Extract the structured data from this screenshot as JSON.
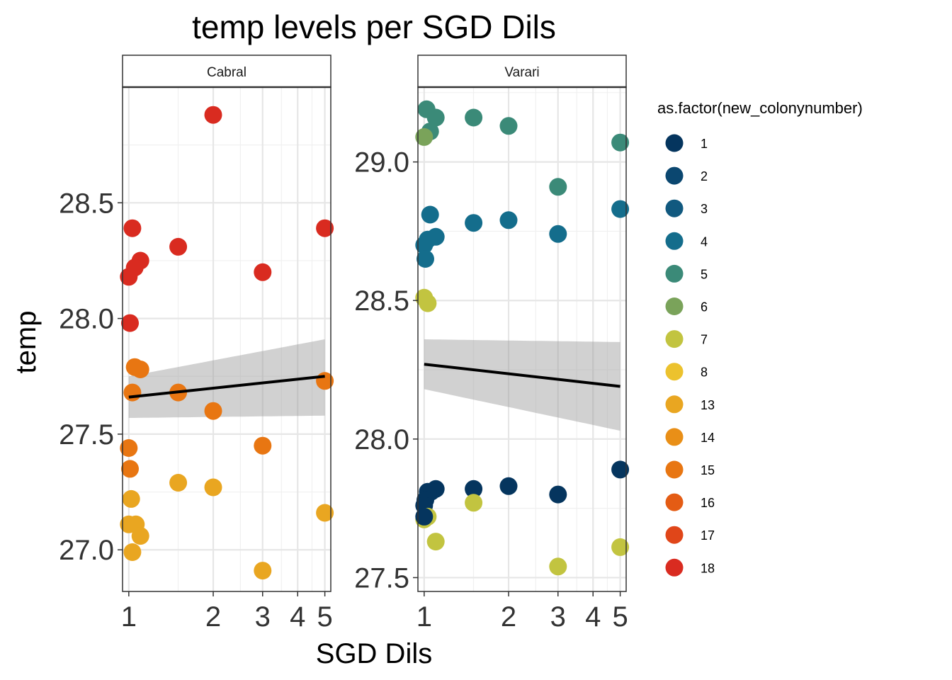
{
  "chart_data": {
    "type": "scatter",
    "title": "temp levels per SGD Dils",
    "xlabel": "SGD Dils",
    "ylabel": "temp",
    "x_scale": "log",
    "x_ticks": [
      1,
      2,
      3,
      4,
      5
    ],
    "legend": {
      "title": "as.factor(new_colonynumber)",
      "position": "right",
      "items": [
        {
          "label": "1",
          "color": "#05355e"
        },
        {
          "label": "2",
          "color": "#0b4770"
        },
        {
          "label": "3",
          "color": "#11597f"
        },
        {
          "label": "4",
          "color": "#146d8c"
        },
        {
          "label": "5",
          "color": "#3b8a78"
        },
        {
          "label": "6",
          "color": "#7aa35a"
        },
        {
          "label": "7",
          "color": "#c2c440"
        },
        {
          "label": "8",
          "color": "#ecc22e"
        },
        {
          "label": "13",
          "color": "#e9a621"
        },
        {
          "label": "14",
          "color": "#e98f17"
        },
        {
          "label": "15",
          "color": "#e87612"
        },
        {
          "label": "16",
          "color": "#e45c14"
        },
        {
          "label": "17",
          "color": "#e04619"
        },
        {
          "label": "18",
          "color": "#d92b20"
        }
      ]
    },
    "panels": [
      {
        "name": "Cabral",
        "ylim": [
          26.82,
          29.0
        ],
        "y_ticks": [
          27.0,
          27.5,
          28.0,
          28.5
        ],
        "y_tick_labels": [
          "27.0",
          "27.5",
          "28.0",
          "28.5"
        ],
        "trend": {
          "x": [
            1,
            5
          ],
          "y": [
            27.66,
            27.75
          ],
          "ci_low": [
            27.57,
            27.58
          ],
          "ci_high": [
            27.75,
            27.91
          ]
        },
        "points": [
          {
            "x": 2.0,
            "y": 28.88,
            "c": "18"
          },
          {
            "x": 1.03,
            "y": 28.39,
            "c": "18"
          },
          {
            "x": 5.0,
            "y": 28.39,
            "c": "18"
          },
          {
            "x": 1.5,
            "y": 28.31,
            "c": "18"
          },
          {
            "x": 1.1,
            "y": 28.25,
            "c": "18"
          },
          {
            "x": 1.05,
            "y": 28.22,
            "c": "18"
          },
          {
            "x": 3.0,
            "y": 28.2,
            "c": "18"
          },
          {
            "x": 1.0,
            "y": 28.18,
            "c": "18"
          },
          {
            "x": 1.01,
            "y": 27.98,
            "c": "18"
          },
          {
            "x": 1.05,
            "y": 27.79,
            "c": "15"
          },
          {
            "x": 1.1,
            "y": 27.78,
            "c": "15"
          },
          {
            "x": 1.03,
            "y": 27.68,
            "c": "15"
          },
          {
            "x": 1.5,
            "y": 27.68,
            "c": "15"
          },
          {
            "x": 5.0,
            "y": 27.73,
            "c": "15"
          },
          {
            "x": 2.0,
            "y": 27.6,
            "c": "15"
          },
          {
            "x": 1.0,
            "y": 27.44,
            "c": "15"
          },
          {
            "x": 3.0,
            "y": 27.45,
            "c": "15"
          },
          {
            "x": 1.01,
            "y": 27.35,
            "c": "15"
          },
          {
            "x": 1.5,
            "y": 27.29,
            "c": "13"
          },
          {
            "x": 2.0,
            "y": 27.27,
            "c": "13"
          },
          {
            "x": 1.02,
            "y": 27.22,
            "c": "13"
          },
          {
            "x": 5.0,
            "y": 27.16,
            "c": "13"
          },
          {
            "x": 1.0,
            "y": 27.11,
            "c": "13"
          },
          {
            "x": 1.06,
            "y": 27.11,
            "c": "13"
          },
          {
            "x": 1.1,
            "y": 27.06,
            "c": "13"
          },
          {
            "x": 1.03,
            "y": 26.99,
            "c": "13"
          },
          {
            "x": 3.0,
            "y": 26.91,
            "c": "13"
          }
        ]
      },
      {
        "name": "Varari",
        "ylim": [
          27.45,
          29.27
        ],
        "y_ticks": [
          27.5,
          28.0,
          28.5,
          29.0
        ],
        "y_tick_labels": [
          "27.5",
          "28.0",
          "28.5",
          "29.0"
        ],
        "trend": {
          "x": [
            1,
            5
          ],
          "y": [
            28.27,
            28.19
          ],
          "ci_low": [
            28.18,
            28.03
          ],
          "ci_high": [
            28.36,
            28.35
          ]
        },
        "points": [
          {
            "x": 1.02,
            "y": 29.19,
            "c": "5"
          },
          {
            "x": 1.1,
            "y": 29.16,
            "c": "5"
          },
          {
            "x": 1.5,
            "y": 29.16,
            "c": "5"
          },
          {
            "x": 2.0,
            "y": 29.13,
            "c": "5"
          },
          {
            "x": 1.05,
            "y": 29.11,
            "c": "5"
          },
          {
            "x": 1.0,
            "y": 29.09,
            "c": "6"
          },
          {
            "x": 5.0,
            "y": 29.07,
            "c": "5"
          },
          {
            "x": 3.0,
            "y": 28.91,
            "c": "5"
          },
          {
            "x": 1.05,
            "y": 28.81,
            "c": "4"
          },
          {
            "x": 5.0,
            "y": 28.83,
            "c": "4"
          },
          {
            "x": 1.5,
            "y": 28.78,
            "c": "4"
          },
          {
            "x": 2.0,
            "y": 28.79,
            "c": "4"
          },
          {
            "x": 3.0,
            "y": 28.74,
            "c": "4"
          },
          {
            "x": 1.1,
            "y": 28.73,
            "c": "4"
          },
          {
            "x": 1.03,
            "y": 28.72,
            "c": "4"
          },
          {
            "x": 1.0,
            "y": 28.7,
            "c": "4"
          },
          {
            "x": 1.01,
            "y": 28.65,
            "c": "4"
          },
          {
            "x": 1.0,
            "y": 28.51,
            "c": "7"
          },
          {
            "x": 1.03,
            "y": 28.49,
            "c": "7"
          },
          {
            "x": 5.0,
            "y": 27.89,
            "c": "1"
          },
          {
            "x": 2.0,
            "y": 27.83,
            "c": "1"
          },
          {
            "x": 1.5,
            "y": 27.82,
            "c": "1"
          },
          {
            "x": 1.1,
            "y": 27.82,
            "c": "1"
          },
          {
            "x": 1.06,
            "y": 27.81,
            "c": "1"
          },
          {
            "x": 1.03,
            "y": 27.81,
            "c": "1"
          },
          {
            "x": 3.0,
            "y": 27.8,
            "c": "1"
          },
          {
            "x": 1.01,
            "y": 27.78,
            "c": "1"
          },
          {
            "x": 1.0,
            "y": 27.76,
            "c": "1"
          },
          {
            "x": 1.5,
            "y": 27.77,
            "c": "7"
          },
          {
            "x": 1.03,
            "y": 27.72,
            "c": "7"
          },
          {
            "x": 1.0,
            "y": 27.71,
            "c": "7"
          },
          {
            "x": 1.0,
            "y": 27.72,
            "c": "1"
          },
          {
            "x": 1.1,
            "y": 27.63,
            "c": "7"
          },
          {
            "x": 5.0,
            "y": 27.61,
            "c": "7"
          },
          {
            "x": 3.0,
            "y": 27.54,
            "c": "7"
          }
        ]
      }
    ]
  }
}
